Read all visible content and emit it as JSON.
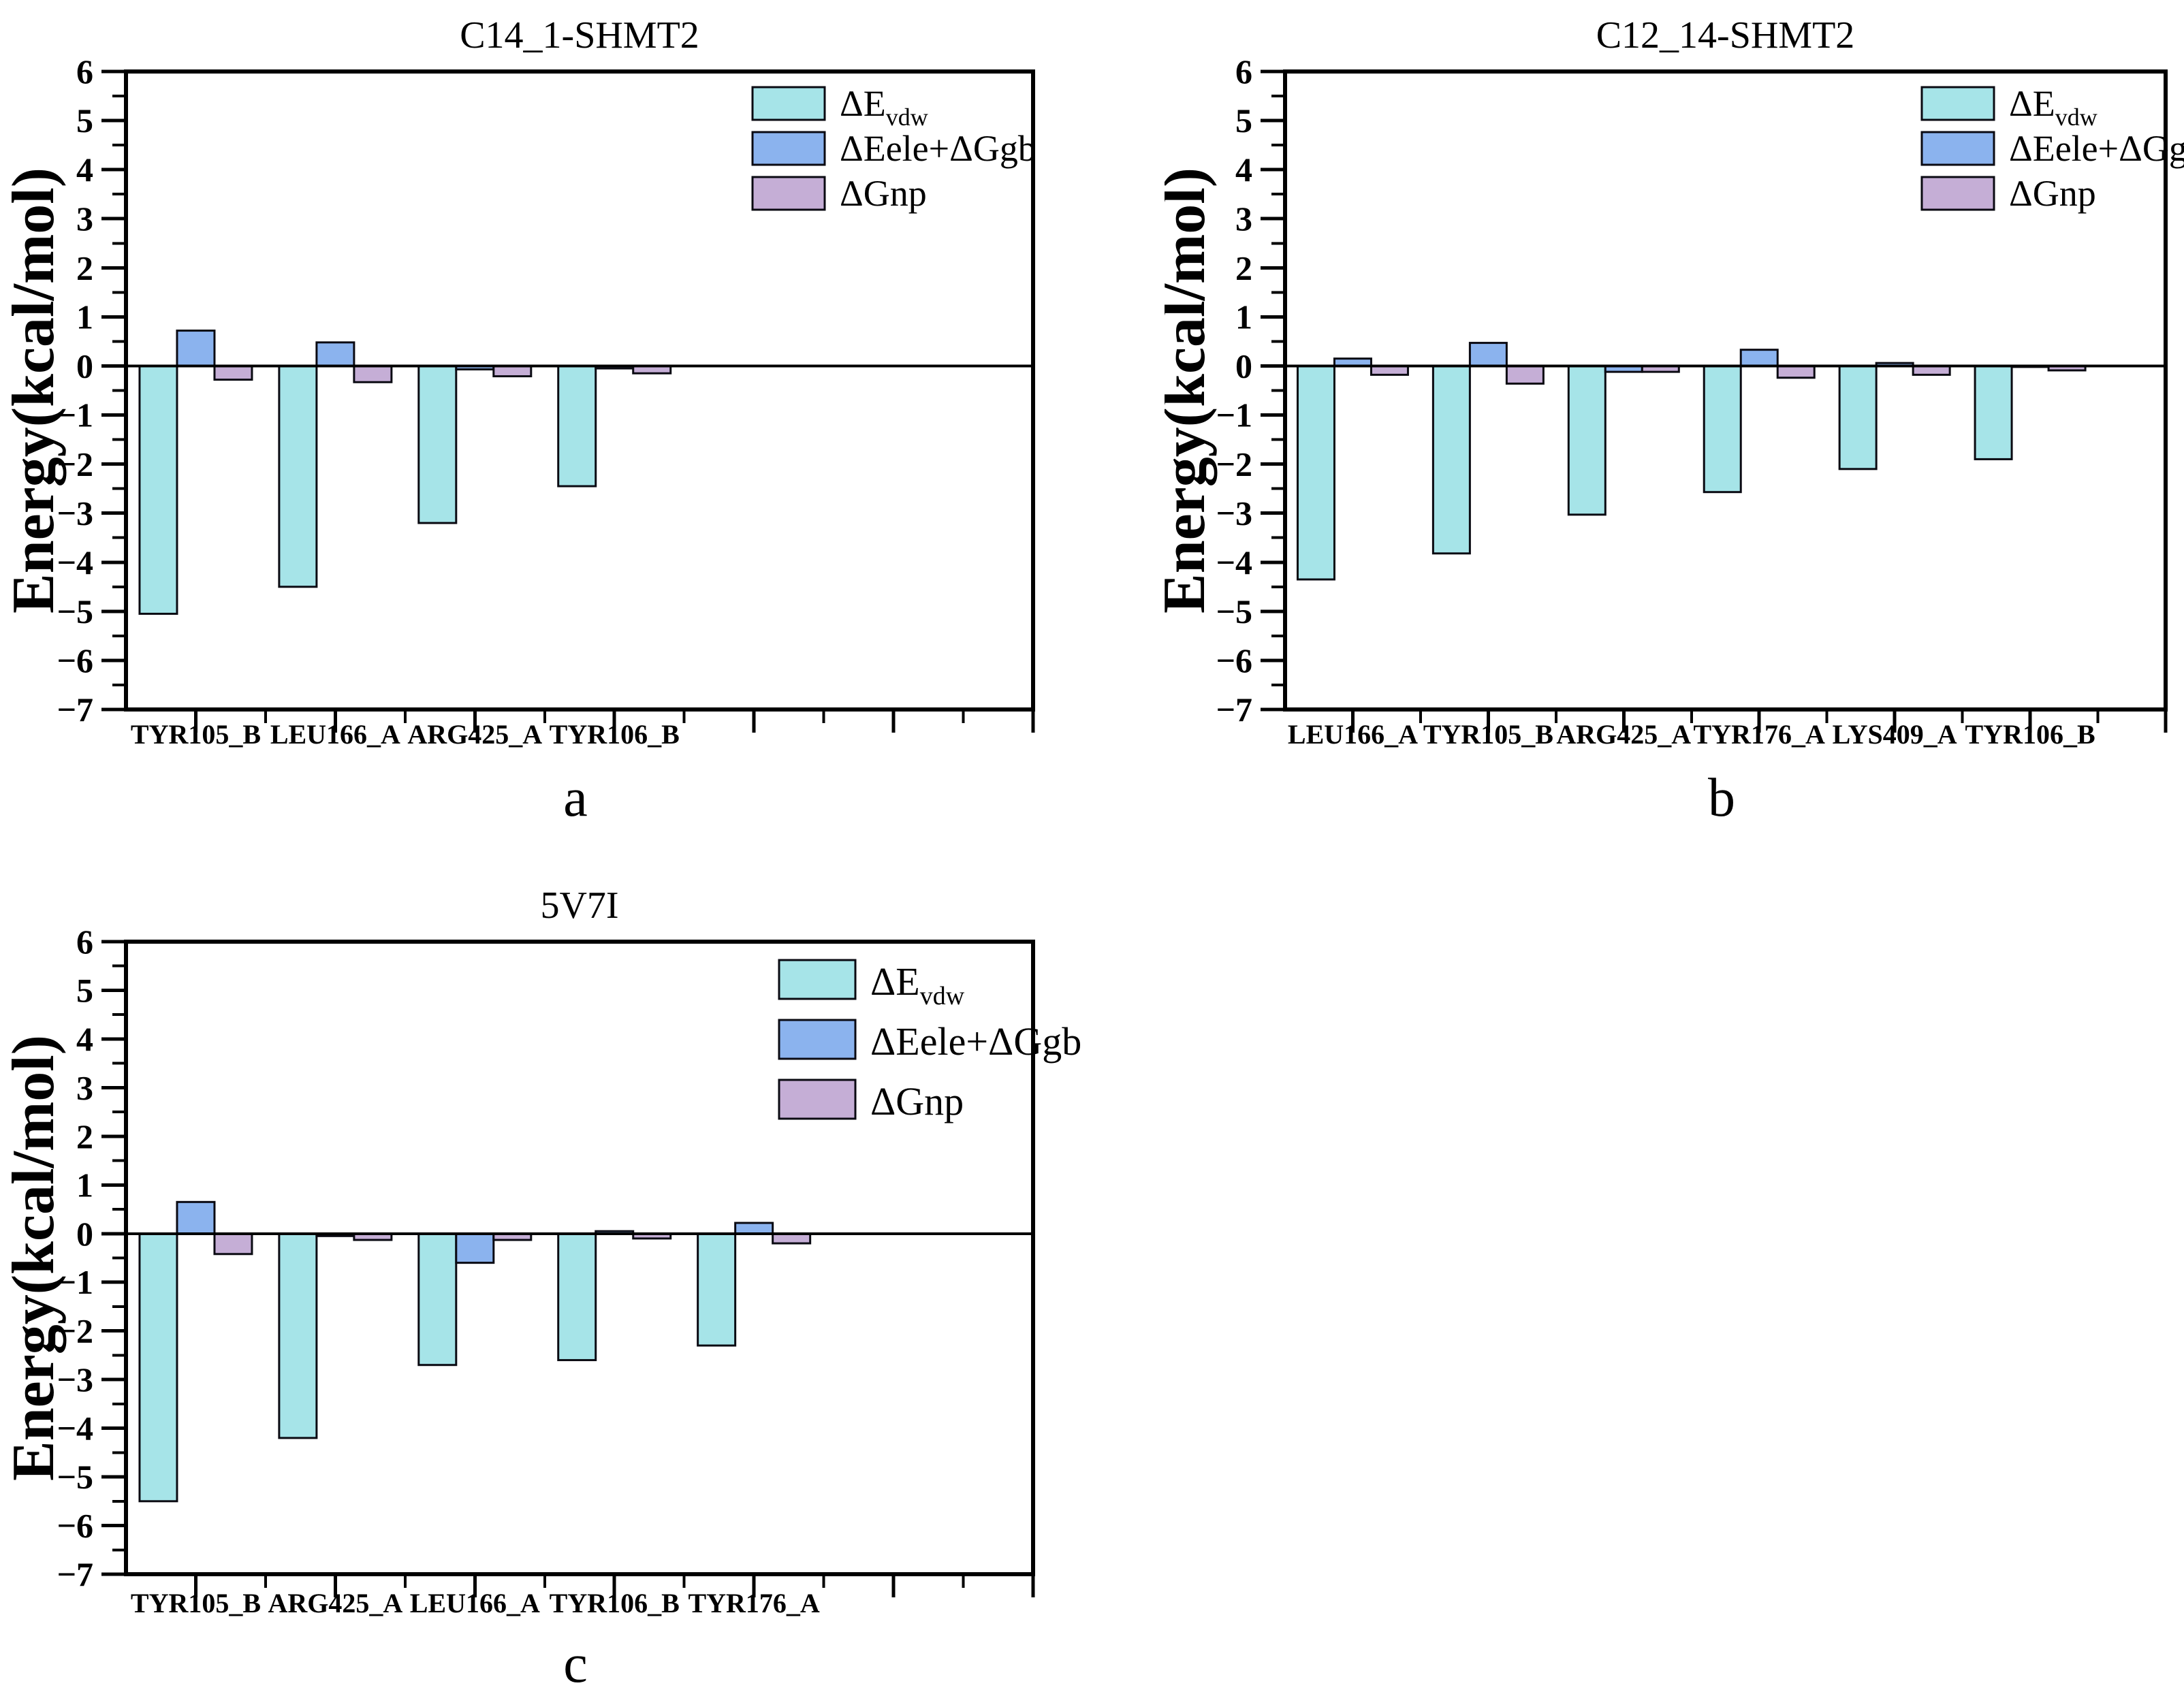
{
  "page": {
    "background": "#ffffff"
  },
  "palette": {
    "vdw": "#a6e4e8",
    "elegb": "#8bb3ee",
    "np": "#c5aed6",
    "bar_stroke": "#0a0a12",
    "axis": "#000000"
  },
  "legend": {
    "items": [
      {
        "key": "vdw",
        "label_main": "ΔE",
        "label_sub": "vdw"
      },
      {
        "key": "elegb",
        "label_main": "ΔEele+ΔGgb",
        "label_sub": ""
      },
      {
        "key": "np",
        "label_main": "ΔGnp",
        "label_sub": ""
      }
    ],
    "position": "top-right-inside"
  },
  "chart_data": [
    {
      "panel": "a",
      "type": "bar",
      "title": "C14_1-SHMT2",
      "ylabel": "Energy(kcal/mol)",
      "xlabel": "",
      "ylim": [
        -7,
        6
      ],
      "yticks": [
        6,
        5,
        4,
        3,
        2,
        1,
        0,
        -1,
        -2,
        -3,
        -4,
        -5,
        -6,
        -7
      ],
      "grid": false,
      "categories": [
        "TYR105_B",
        "LEU166_A",
        "ARG425_A",
        "TYR106_B"
      ],
      "series": [
        {
          "name": "ΔEvdw",
          "key": "vdw",
          "values": [
            -5.05,
            -4.5,
            -3.2,
            -2.45
          ]
        },
        {
          "name": "ΔEele+ΔGgb",
          "key": "elegb",
          "values": [
            0.72,
            0.48,
            -0.07,
            -0.05
          ]
        },
        {
          "name": "ΔGnp",
          "key": "np",
          "values": [
            -0.28,
            -0.33,
            -0.21,
            -0.15
          ]
        }
      ]
    },
    {
      "panel": "b",
      "type": "bar",
      "title": "C12_14-SHMT2",
      "ylabel": "Energy(kcal/mol)",
      "xlabel": "",
      "ylim": [
        -7,
        6
      ],
      "yticks": [
        6,
        5,
        4,
        3,
        2,
        1,
        0,
        -1,
        -2,
        -3,
        -4,
        -5,
        -6,
        -7
      ],
      "grid": false,
      "categories": [
        "LEU166_A",
        "TYR105_B",
        "ARG425_A",
        "TYR176_A",
        "LYS409_A",
        "TYR106_B"
      ],
      "series": [
        {
          "name": "ΔEvdw",
          "key": "vdw",
          "values": [
            -4.35,
            -3.82,
            -3.03,
            -2.57,
            -2.1,
            -1.9
          ]
        },
        {
          "name": "ΔEele+ΔGgb",
          "key": "elegb",
          "values": [
            0.15,
            0.47,
            -0.12,
            0.33,
            0.06,
            -0.02
          ]
        },
        {
          "name": "ΔGnp",
          "key": "np",
          "values": [
            -0.18,
            -0.36,
            -0.12,
            -0.24,
            -0.18,
            -0.09
          ]
        }
      ]
    },
    {
      "panel": "c",
      "type": "bar",
      "title": "5V7I",
      "ylabel": "Energy(kcal/mol)",
      "xlabel": "",
      "ylim": [
        -7,
        6
      ],
      "yticks": [
        6,
        5,
        4,
        3,
        2,
        1,
        0,
        -1,
        -2,
        -3,
        -4,
        -5,
        -6,
        -7
      ],
      "grid": false,
      "categories": [
        "TYR105_B",
        "ARG425_A",
        "LEU166_A",
        "TYR106_B",
        "TYR176_A"
      ],
      "series": [
        {
          "name": "ΔEvdw",
          "key": "vdw",
          "values": [
            -5.5,
            -4.2,
            -2.7,
            -2.6,
            -2.3
          ]
        },
        {
          "name": "ΔEele+ΔGgb",
          "key": "elegb",
          "values": [
            0.65,
            -0.05,
            -0.6,
            0.05,
            0.22
          ]
        },
        {
          "name": "ΔGnp",
          "key": "np",
          "values": [
            -0.42,
            -0.13,
            -0.13,
            -0.1,
            -0.2
          ]
        }
      ]
    }
  ]
}
